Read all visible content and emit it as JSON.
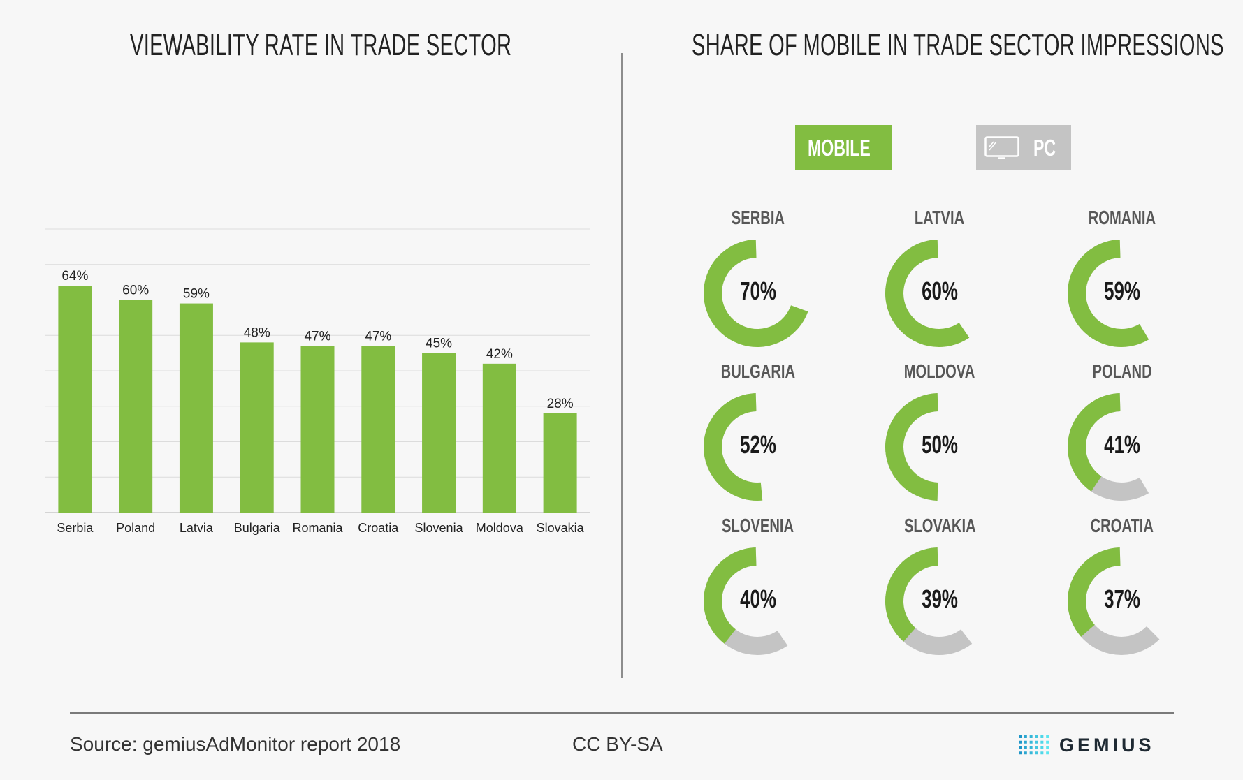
{
  "left_title": "VIEWABILITY RATE IN TRADE SECTOR",
  "right_title": "SHARE OF MOBILE IN TRADE SECTOR IMPRESSIONS",
  "legend": {
    "mobile_label": "MOBILE",
    "pc_label": "PC",
    "mobile_color": "#82bd41",
    "pc_color": "#c4c4c4",
    "mobile_icon": "smartphone-icon",
    "pc_icon": "monitor-icon"
  },
  "footer": {
    "source": "Source: gemiusAdMonitor report 2018",
    "license": "CC BY-SA",
    "logo_text": "GEMIUS",
    "logo_icon": "gemius-dots-logo"
  },
  "chart_data": [
    {
      "type": "bar",
      "title": "VIEWABILITY RATE IN TRADE SECTOR",
      "categories": [
        "Serbia",
        "Poland",
        "Latvia",
        "Bulgaria",
        "Romania",
        "Croatia",
        "Slovenia",
        "Moldova",
        "Slovakia"
      ],
      "values": [
        64,
        60,
        59,
        48,
        47,
        47,
        45,
        42,
        28
      ],
      "value_labels": [
        "64%",
        "60%",
        "59%",
        "48%",
        "47%",
        "47%",
        "45%",
        "42%",
        "28%"
      ],
      "ylim": [
        0,
        80
      ],
      "grid": true,
      "color": "#82bd41"
    },
    {
      "type": "pie",
      "title": "SHARE OF MOBILE IN TRADE SECTOR IMPRESSIONS",
      "series_labels": [
        "MOBILE",
        "PC"
      ],
      "items": [
        {
          "name": "SERBIA",
          "mobile": 70,
          "label": "70%"
        },
        {
          "name": "LATVIA",
          "mobile": 60,
          "label": "60%"
        },
        {
          "name": "ROMANIA",
          "mobile": 59,
          "label": "59%"
        },
        {
          "name": "BULGARIA",
          "mobile": 52,
          "label": "52%"
        },
        {
          "name": "MOLDOVA",
          "mobile": 50,
          "label": "50%"
        },
        {
          "name": "POLAND",
          "mobile": 41,
          "label": "41%"
        },
        {
          "name": "SLOVENIA",
          "mobile": 40,
          "label": "40%"
        },
        {
          "name": "SLOVAKIA",
          "mobile": 39,
          "label": "39%"
        },
        {
          "name": "CROATIA",
          "mobile": 37,
          "label": "37%"
        }
      ]
    }
  ]
}
